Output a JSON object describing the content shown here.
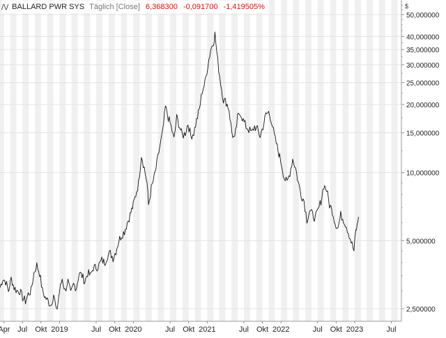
{
  "legend": {
    "symbol": "/\\/",
    "name": "BALLARD PWR SYS",
    "mode": "Täglich [Close]",
    "last": "6,368300",
    "change": "-0,091700",
    "change_pct": "-1,419505%"
  },
  "currency": "$",
  "colors": {
    "line": "#111111",
    "stripe": "#f0f0f0",
    "grid": "#e3e3e3",
    "loss": "#dd1111"
  },
  "chart_data": {
    "type": "line",
    "title": "BALLARD PWR SYS",
    "yscale": "log",
    "ylim": [
      2.2,
      58
    ],
    "xlim": [
      "2018-03-12",
      "2023-08-20"
    ],
    "y_ticks": [
      {
        "v": 50,
        "label": "50,000000"
      },
      {
        "v": 40,
        "label": "40,000000"
      },
      {
        "v": 35,
        "label": "35,000000"
      },
      {
        "v": 30,
        "label": "30,000000"
      },
      {
        "v": 25,
        "label": "25,000000"
      },
      {
        "v": 20,
        "label": "20,000000"
      },
      {
        "v": 15,
        "label": "15,000000"
      },
      {
        "v": 10,
        "label": "10,000000"
      },
      {
        "v": 5,
        "label": "5,000000"
      },
      {
        "v": 2.5,
        "label": "2,500000"
      }
    ],
    "x_ticks": [
      {
        "d": "2018-04-01",
        "label": "Apr"
      },
      {
        "d": "2018-07-01",
        "label": "Jul"
      },
      {
        "d": "2018-10-01",
        "label": "Okt"
      },
      {
        "d": "2019-01-01",
        "label": "2019"
      },
      {
        "d": "2019-07-01",
        "label": "Jul"
      },
      {
        "d": "2019-10-01",
        "label": "Okt"
      },
      {
        "d": "2020-01-01",
        "label": "2020"
      },
      {
        "d": "2020-07-01",
        "label": "Jul"
      },
      {
        "d": "2020-10-01",
        "label": "Okt"
      },
      {
        "d": "2021-01-01",
        "label": "2021"
      },
      {
        "d": "2021-07-01",
        "label": "Jul"
      },
      {
        "d": "2021-10-01",
        "label": "Okt"
      },
      {
        "d": "2022-01-01",
        "label": "2022"
      },
      {
        "d": "2022-07-01",
        "label": "Jul"
      },
      {
        "d": "2022-10-01",
        "label": "Okt"
      },
      {
        "d": "2023-01-01",
        "label": "2023"
      },
      {
        "d": "2023-07-01",
        "label": "Jul"
      }
    ],
    "series": [
      {
        "points": [
          [
            "2018-03-12",
            3.1
          ],
          [
            "2018-03-26",
            3.4
          ],
          [
            "2018-04-09",
            3.3
          ],
          [
            "2018-04-23",
            3.0
          ],
          [
            "2018-05-07",
            3.4
          ],
          [
            "2018-05-21",
            3.1
          ],
          [
            "2018-06-04",
            3.0
          ],
          [
            "2018-06-18",
            3.0
          ],
          [
            "2018-07-02",
            2.8
          ],
          [
            "2018-07-16",
            2.7
          ],
          [
            "2018-07-30",
            2.9
          ],
          [
            "2018-08-13",
            3.0
          ],
          [
            "2018-08-27",
            3.6
          ],
          [
            "2018-09-10",
            3.9
          ],
          [
            "2018-09-24",
            3.6
          ],
          [
            "2018-10-08",
            3.0
          ],
          [
            "2018-10-22",
            2.8
          ],
          [
            "2018-11-05",
            2.7
          ],
          [
            "2018-11-19",
            2.6
          ],
          [
            "2018-12-03",
            2.9
          ],
          [
            "2018-12-17",
            2.4
          ],
          [
            "2019-01-01",
            3.0
          ],
          [
            "2019-01-14",
            3.4
          ],
          [
            "2019-01-28",
            3.0
          ],
          [
            "2019-02-11",
            3.3
          ],
          [
            "2019-02-25",
            2.9
          ],
          [
            "2019-03-11",
            3.2
          ],
          [
            "2019-03-25",
            3.1
          ],
          [
            "2019-04-08",
            3.6
          ],
          [
            "2019-04-22",
            3.5
          ],
          [
            "2019-05-06",
            3.3
          ],
          [
            "2019-05-20",
            3.6
          ],
          [
            "2019-06-03",
            3.5
          ],
          [
            "2019-06-17",
            3.8
          ],
          [
            "2019-07-01",
            3.8
          ],
          [
            "2019-07-15",
            3.9
          ],
          [
            "2019-07-29",
            4.1
          ],
          [
            "2019-08-12",
            4.0
          ],
          [
            "2019-08-26",
            4.3
          ],
          [
            "2019-09-09",
            4.4
          ],
          [
            "2019-09-23",
            4.2
          ],
          [
            "2019-10-07",
            4.5
          ],
          [
            "2019-10-21",
            5.0
          ],
          [
            "2019-11-04",
            5.3
          ],
          [
            "2019-11-18",
            5.5
          ],
          [
            "2019-12-02",
            6.0
          ],
          [
            "2019-12-16",
            6.5
          ],
          [
            "2020-01-01",
            7.2
          ],
          [
            "2020-01-13",
            8.0
          ],
          [
            "2020-01-27",
            9.0
          ],
          [
            "2020-02-10",
            12.0
          ],
          [
            "2020-02-24",
            10.5
          ],
          [
            "2020-03-09",
            9.0
          ],
          [
            "2020-03-16",
            7.2
          ],
          [
            "2020-03-30",
            8.5
          ],
          [
            "2020-04-13",
            9.5
          ],
          [
            "2020-04-27",
            11.0
          ],
          [
            "2020-05-11",
            13.0
          ],
          [
            "2020-05-25",
            15.0
          ],
          [
            "2020-06-08",
            19.5
          ],
          [
            "2020-06-22",
            17.5
          ],
          [
            "2020-07-06",
            16.0
          ],
          [
            "2020-07-20",
            14.0
          ],
          [
            "2020-08-03",
            17.5
          ],
          [
            "2020-08-17",
            16.0
          ],
          [
            "2020-08-31",
            14.5
          ],
          [
            "2020-09-14",
            15.0
          ],
          [
            "2020-09-28",
            16.5
          ],
          [
            "2020-10-12",
            14.5
          ],
          [
            "2020-10-26",
            15.0
          ],
          [
            "2020-11-09",
            17.0
          ],
          [
            "2020-11-23",
            19.0
          ],
          [
            "2020-12-07",
            23.0
          ],
          [
            "2020-12-21",
            25.0
          ],
          [
            "2021-01-04",
            30.0
          ],
          [
            "2021-01-18",
            35.0
          ],
          [
            "2021-02-01",
            38.0
          ],
          [
            "2021-02-08",
            41.0
          ],
          [
            "2021-02-22",
            31.0
          ],
          [
            "2021-03-08",
            25.0
          ],
          [
            "2021-03-22",
            21.0
          ],
          [
            "2021-04-05",
            20.5
          ],
          [
            "2021-04-19",
            19.0
          ],
          [
            "2021-05-03",
            15.0
          ],
          [
            "2021-05-17",
            14.0
          ],
          [
            "2021-05-31",
            17.5
          ],
          [
            "2021-06-14",
            18.5
          ],
          [
            "2021-06-28",
            17.0
          ],
          [
            "2021-07-12",
            16.0
          ],
          [
            "2021-07-26",
            15.5
          ],
          [
            "2021-08-09",
            15.0
          ],
          [
            "2021-08-23",
            16.0
          ],
          [
            "2021-09-06",
            15.5
          ],
          [
            "2021-09-20",
            14.5
          ],
          [
            "2021-10-04",
            16.0
          ],
          [
            "2021-10-18",
            18.0
          ],
          [
            "2021-11-01",
            18.5
          ],
          [
            "2021-11-15",
            17.0
          ],
          [
            "2021-11-29",
            14.5
          ],
          [
            "2021-12-13",
            13.0
          ],
          [
            "2022-01-03",
            11.0
          ],
          [
            "2022-01-17",
            9.5
          ],
          [
            "2022-01-31",
            9.0
          ],
          [
            "2022-02-14",
            10.0
          ],
          [
            "2022-02-28",
            11.5
          ],
          [
            "2022-03-14",
            10.5
          ],
          [
            "2022-03-28",
            9.0
          ],
          [
            "2022-04-11",
            8.0
          ],
          [
            "2022-04-25",
            7.5
          ],
          [
            "2022-05-09",
            6.2
          ],
          [
            "2022-05-23",
            6.8
          ],
          [
            "2022-06-06",
            6.5
          ],
          [
            "2022-06-20",
            6.3
          ],
          [
            "2022-07-04",
            6.8
          ],
          [
            "2022-07-18",
            7.5
          ],
          [
            "2022-08-01",
            8.8
          ],
          [
            "2022-08-15",
            8.4
          ],
          [
            "2022-08-29",
            7.2
          ],
          [
            "2022-09-12",
            6.8
          ],
          [
            "2022-09-26",
            6.0
          ],
          [
            "2022-10-10",
            5.7
          ],
          [
            "2022-10-24",
            6.5
          ],
          [
            "2022-11-07",
            6.2
          ],
          [
            "2022-11-21",
            5.8
          ],
          [
            "2022-12-05",
            5.3
          ],
          [
            "2022-12-19",
            4.8
          ],
          [
            "2022-12-28",
            4.5
          ],
          [
            "2023-01-06",
            5.5
          ],
          [
            "2023-01-13",
            5.8
          ],
          [
            "2023-01-20",
            6.37
          ]
        ]
      }
    ]
  }
}
